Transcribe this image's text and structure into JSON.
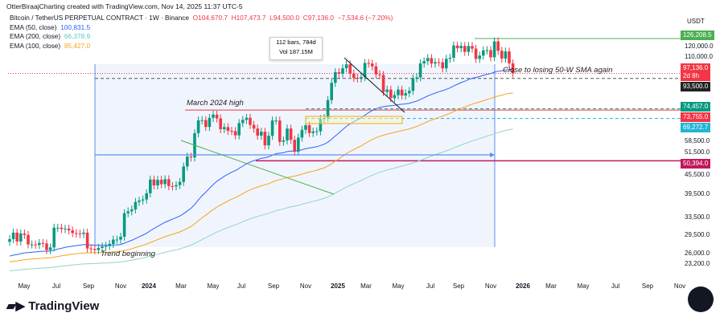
{
  "header": {
    "credit": "OtterBiraajCharting created with TradingView.com, Nov 14, 2025 11:37 UTC-5",
    "symbol": "Bitcoin / TetherUS PERPETUAL CONTRACT · 1W · Binance",
    "open": "O104,670.7",
    "high": "H107,473.7",
    "low": "L94,500.0",
    "close": "C97,136.0",
    "change": "−7,534.6 (−7.20%)"
  },
  "indicators": [
    {
      "label": "EMA (50, close)",
      "value": "100,831.5",
      "color": "#2962ff"
    },
    {
      "label": "EMA (200, close)",
      "value": "66,378.9",
      "color": "#5cc8b8"
    },
    {
      "label": "EMA (100, close)",
      "value": "85,427.0",
      "color": "#f7a21b"
    }
  ],
  "tooltip": {
    "line1": "112 bars, 784d",
    "line2": "Vol 187.15M"
  },
  "annotations": {
    "march_high": "March 2024 high",
    "sma_note": "Close to losing 50-W SMA again",
    "trend": "Trend beginning"
  },
  "logo": "TradingView",
  "chart_data": {
    "type": "candlestick",
    "yscale": "log",
    "currency": "USDT",
    "axis_title": "USDT",
    "y_ticks": [
      "120,000.0",
      "110,000.0",
      "58,500.0",
      "51,500.0",
      "45,500.0",
      "39,500.0",
      "33,500.0",
      "29,500.0",
      "26,000.0",
      "23,200.0"
    ],
    "x_ticks": [
      "May",
      "Jul",
      "Sep",
      "Nov",
      "2024",
      "Mar",
      "May",
      "Jul",
      "Sep",
      "Nov",
      "2025",
      "Mar",
      "May",
      "Jul",
      "Sep",
      "Nov",
      "2026",
      "Mar",
      "May",
      "Jul",
      "Sep",
      "Nov"
    ],
    "price_badges": [
      {
        "value": "126,208.5",
        "color": "#4caf50"
      },
      {
        "value": "97,136.0",
        "sub": "2d 8h",
        "color": "#f23645"
      },
      {
        "value": "93,500.0",
        "color": "#222222"
      },
      {
        "value": "74,457.0",
        "color": "#089981"
      },
      {
        "value": "73,755.0",
        "color": "#f23645"
      },
      {
        "value": "69,272.7",
        "color": "#22b5d4"
      },
      {
        "value": "50,394.0",
        "color": "#c2185b"
      }
    ],
    "weekly_closes": [
      28000,
      29400,
      27500,
      29200,
      28900,
      26900,
      26900,
      26800,
      27200,
      27100,
      25800,
      26300,
      30500,
      30500,
      30200,
      30300,
      29900,
      29300,
      29200,
      29100,
      29400,
      26100,
      26000,
      25800,
      26200,
      26500,
      26600,
      27000,
      27900,
      27900,
      28500,
      34000,
      34500,
      35000,
      37000,
      37400,
      37700,
      39500,
      43800,
      41900,
      43700,
      42300,
      43900,
      41700,
      41600,
      42000,
      43000,
      48300,
      52000,
      51700,
      62000,
      68300,
      68400,
      65000,
      69600,
      71300,
      69300,
      63900,
      64900,
      63100,
      63000,
      61000,
      66900,
      68500,
      69600,
      66000,
      64200,
      60900,
      62700,
      56600,
      60800,
      68200,
      68200,
      58100,
      58700,
      64200,
      59000,
      54000,
      60000,
      63600,
      65800,
      62100,
      62800,
      62900,
      69000,
      69500,
      79500,
      90500,
      98000,
      97000,
      101000,
      104000,
      97000,
      94000,
      93500,
      94500,
      105000,
      104600,
      102400,
      96500,
      96000,
      84500,
      86000,
      80700,
      82500,
      86000,
      82300,
      83700,
      85200,
      93700,
      94300,
      104700,
      106500,
      109000,
      104600,
      105700,
      105500,
      100900,
      108400,
      109200,
      119800,
      117300,
      119400,
      114200,
      119300,
      117000,
      108300,
      111000,
      115500,
      115700,
      109600,
      123500,
      115100,
      108600,
      114500,
      104700,
      97136
    ]
  }
}
